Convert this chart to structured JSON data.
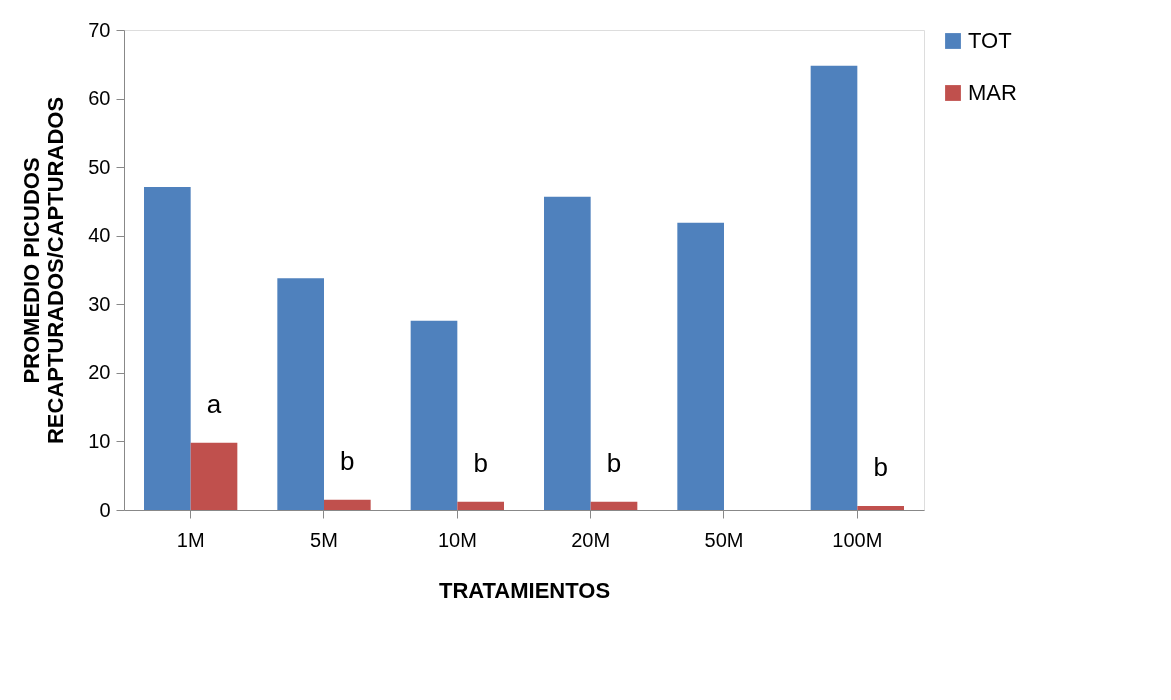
{
  "chart_data": {
    "type": "bar",
    "xlabel": "TRATAMIENTOS",
    "ylabel": "PROMEDIO PICUDOS\nRECAPTURADOS/CAPTURADOS",
    "categories": [
      "1M",
      "5M",
      "10M",
      "20M",
      "50M",
      "100M"
    ],
    "series": [
      {
        "name": "TOT",
        "color": "#4f81bd",
        "values": [
          47.1,
          33.8,
          27.6,
          45.7,
          41.9,
          64.8
        ]
      },
      {
        "name": "MAR",
        "color": "#c0504d",
        "values": [
          9.8,
          1.5,
          1.2,
          1.2,
          null,
          0.6
        ]
      }
    ],
    "ylim": [
      0,
      70
    ],
    "yticks": [
      0,
      10,
      20,
      30,
      40,
      50,
      60,
      70
    ],
    "grid": false,
    "legend": "right",
    "annotations": [
      "a",
      "b",
      "b",
      "b",
      "b"
    ]
  }
}
